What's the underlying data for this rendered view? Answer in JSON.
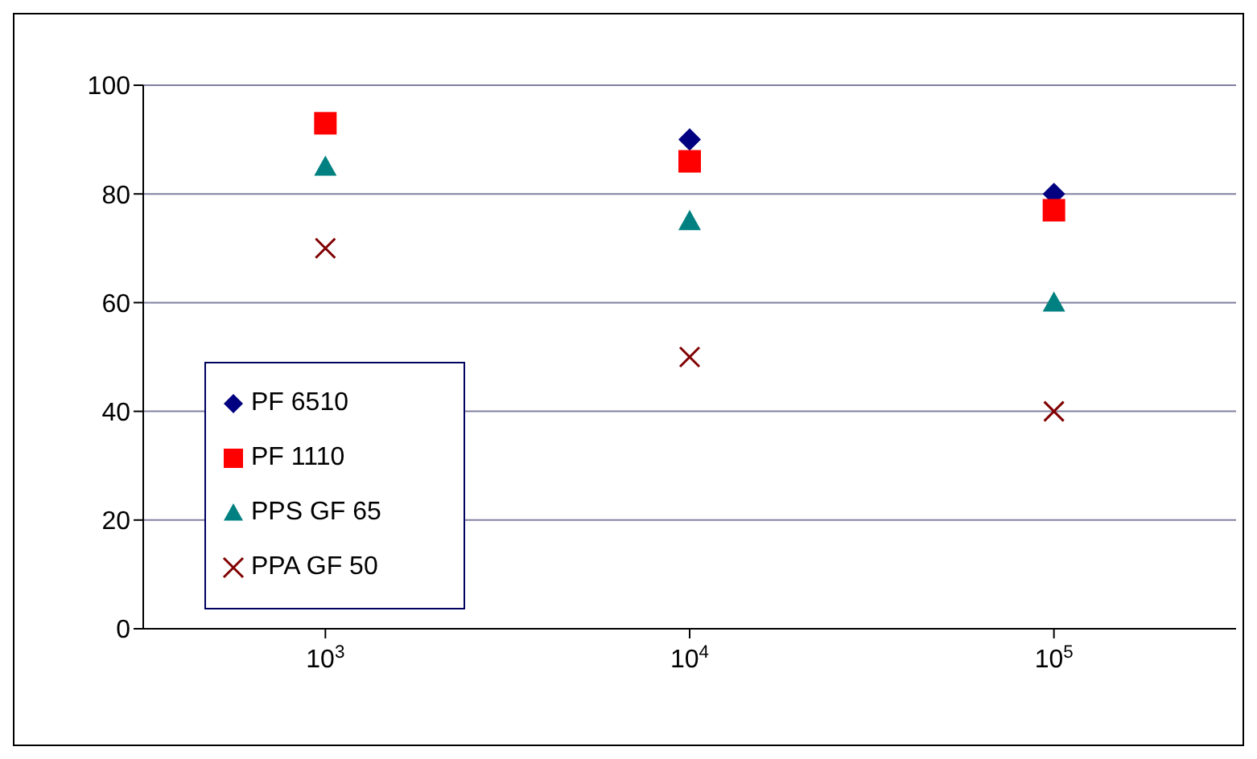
{
  "chart_data": {
    "type": "scatter",
    "categories": [
      "10$^{3}$",
      "10$^{4}$",
      "10$^{5}$"
    ],
    "series": [
      {
        "name": "PF 6510",
        "color": "#000080",
        "marker": "diamond",
        "values": [
          null,
          90,
          80
        ]
      },
      {
        "name": "PF 1110",
        "color": "#ff0000",
        "marker": "square",
        "values": [
          93,
          86,
          77
        ]
      },
      {
        "name": "PPS GF 65",
        "color": "#008080",
        "marker": "triangle",
        "values": [
          85,
          75,
          60
        ]
      },
      {
        "name": "PPA GF 50",
        "color": "#800000",
        "marker": "cross",
        "values": [
          70,
          50,
          40
        ]
      }
    ],
    "ylim": [
      0,
      100
    ],
    "yticks": [
      0,
      20,
      40,
      60,
      80,
      100
    ],
    "grid": "y",
    "legend": "bottom left"
  }
}
